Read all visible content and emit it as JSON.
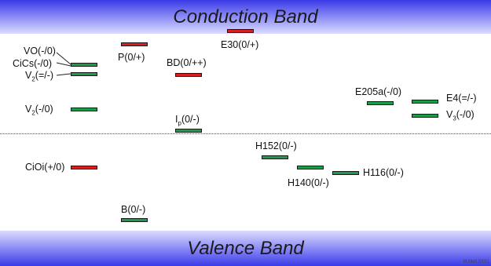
{
  "bands": {
    "conduction": "Conduction Band",
    "valence": "Valence Band",
    "credit": "M.Moll [001]"
  },
  "colors": {
    "acceptor_level": "#1e9a4c",
    "donor_level": "#d62020",
    "band_dark": "#3a3ae6",
    "band_light": "#dcdcff"
  },
  "levels": {
    "vo": {
      "label": "VO(-/0)",
      "type": "acceptor"
    },
    "cics": {
      "label": "CiCs(-/0)",
      "type": "acceptor"
    },
    "v2_a": {
      "label_main": "V",
      "label_sub": "2",
      "label_rest": "(=/-)",
      "type": "acceptor"
    },
    "v2_b": {
      "label_main": "V",
      "label_sub": "2",
      "label_rest": "(-/0)",
      "type": "acceptor"
    },
    "cioi": {
      "label": "CiOi(+/0)",
      "type": "donor"
    },
    "p": {
      "label": "P(0/+)",
      "type": "donor"
    },
    "b": {
      "label": "B(0/-)",
      "type": "acceptor"
    },
    "bd": {
      "label": "BD(0/++)",
      "type": "donor"
    },
    "ip": {
      "label_main": "I",
      "label_sub": "p",
      "label_rest": "(0/-)",
      "type": "acceptor"
    },
    "e30": {
      "label": "E30(0/+)",
      "type": "donor"
    },
    "h152": {
      "label": "H152(0/-)",
      "type": "acceptor"
    },
    "h140": {
      "label": "H140(0/-)",
      "type": "acceptor"
    },
    "h116": {
      "label": "H116(0/-)",
      "type": "acceptor"
    },
    "e205a": {
      "label": "E205a(-/0)",
      "type": "acceptor"
    },
    "e4": {
      "label": "E4(=/-)",
      "type": "acceptor"
    },
    "v3": {
      "label_main": "V",
      "label_sub": "3",
      "label_rest": "(-/0)",
      "type": "acceptor"
    }
  }
}
